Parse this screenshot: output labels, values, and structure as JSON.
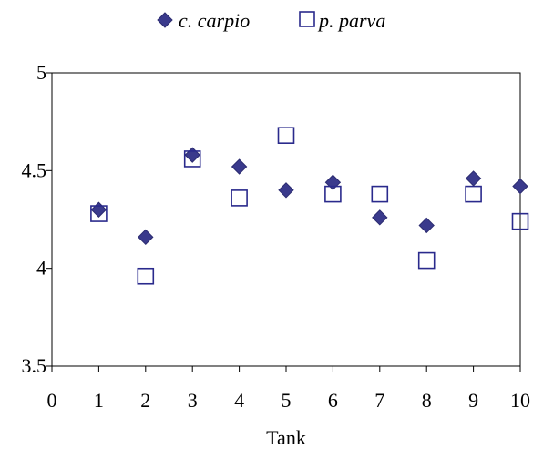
{
  "chart_data": {
    "type": "scatter",
    "title": "",
    "xlabel": "Tank",
    "ylabel": "",
    "xlim": [
      0,
      10
    ],
    "ylim": [
      3.5,
      5
    ],
    "xticks": [
      0,
      1,
      2,
      3,
      4,
      5,
      6,
      7,
      8,
      9,
      10
    ],
    "yticks": [
      3.5,
      4,
      4.5,
      5
    ],
    "ytick_labels": [
      "3.5",
      "4",
      "4.5",
      "5"
    ],
    "grid": false,
    "legend_position": "top-center",
    "series": [
      {
        "name": "c. carpio",
        "marker": "filled-diamond",
        "color": "#3a3a8c",
        "x": [
          1,
          2,
          3,
          4,
          5,
          6,
          7,
          8,
          9,
          10
        ],
        "y": [
          4.3,
          4.16,
          4.58,
          4.52,
          4.4,
          4.44,
          4.26,
          4.22,
          4.46,
          4.42
        ]
      },
      {
        "name": "p. parva",
        "marker": "open-square",
        "color": "#2a2a8c",
        "x": [
          1,
          2,
          3,
          4,
          5,
          6,
          7,
          8,
          9,
          10
        ],
        "y": [
          4.28,
          3.96,
          4.56,
          4.36,
          4.68,
          4.38,
          4.38,
          4.04,
          4.38,
          4.24
        ]
      }
    ]
  }
}
